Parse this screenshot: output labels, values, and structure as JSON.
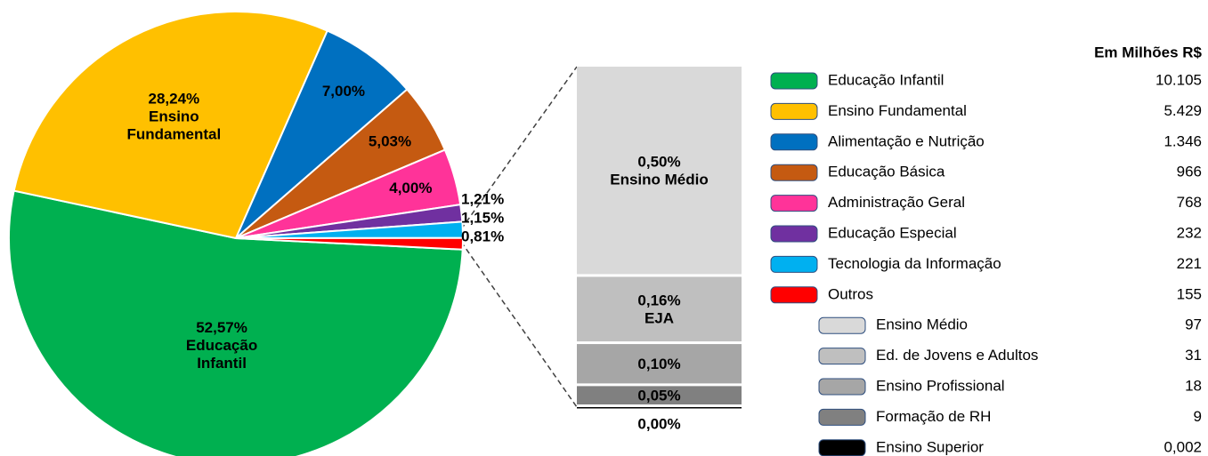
{
  "chart_data": {
    "type": "pie",
    "amount_header": "Em Milhões R$",
    "categories": [
      "Educação Infantil",
      "Ensino Fundamental",
      "Alimentação e Nutrição",
      "Educação Básica",
      "Administração Geral",
      "Educação Especial",
      "Tecnologia da Informação",
      "Outros"
    ],
    "values": [
      52.57,
      28.24,
      7.0,
      5.03,
      4.0,
      1.21,
      1.15,
      0.81
    ],
    "value_labels": [
      "52,57%",
      "28,24%",
      "7,00%",
      "5,03%",
      "4,00%",
      "1,21%",
      "1,15%",
      "0,81%"
    ],
    "inner_labels": [
      [
        "Educação",
        "Infantil"
      ],
      [
        "Ensino",
        "Fundamental"
      ],
      null,
      null,
      null,
      null,
      null,
      null
    ],
    "colors": [
      "#00b050",
      "#ffc000",
      "#0070c0",
      "#c55a11",
      "#ff3399",
      "#7030a0",
      "#00b0f0",
      "#ff0000"
    ],
    "amounts": [
      "10.105",
      "5.429",
      "1.346",
      "966",
      "768",
      "232",
      "221",
      "155"
    ],
    "breakdown": {
      "type": "bar",
      "categories": [
        "Ensino Médio",
        "Ed. de Jovens e Adultos",
        "Ensino Profissional",
        "Formação de RH",
        "Ensino Superior"
      ],
      "values": [
        0.5,
        0.16,
        0.1,
        0.05,
        0.0
      ],
      "value_labels": [
        "0,50%",
        "0,16%",
        "0,10%",
        "0,05%",
        "0,00%"
      ],
      "inner_labels": [
        [
          "Ensino Médio"
        ],
        [
          "EJA"
        ],
        null,
        null,
        null
      ],
      "colors": [
        "#d9d9d9",
        "#bfbfbf",
        "#a6a6a6",
        "#808080",
        "#000000"
      ],
      "amounts": [
        "97",
        "31",
        "18",
        "9",
        "0,002"
      ]
    }
  }
}
